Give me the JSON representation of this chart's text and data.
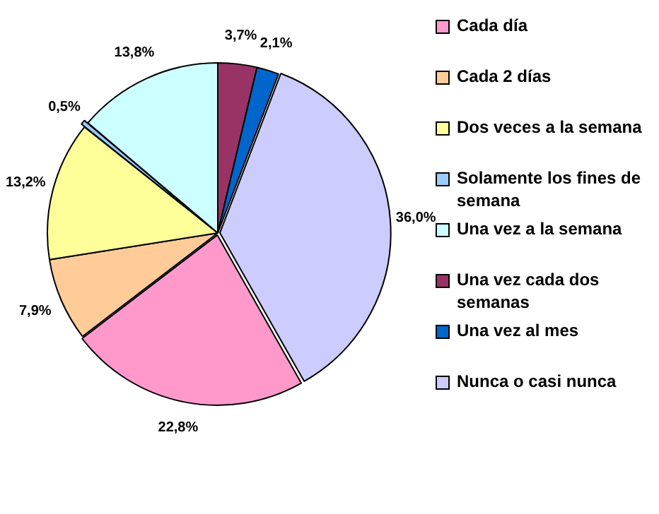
{
  "chart_data": {
    "type": "pie",
    "categories": [
      "Cada día",
      "Cada 2 días",
      "Dos veces a la semana",
      "Solamente los fines de semana",
      "Una vez a la semana",
      "Una vez cada dos semanas",
      "Una vez al mes",
      "Nunca o casi nunca"
    ],
    "values": [
      22.8,
      7.9,
      13.2,
      0.5,
      13.8,
      3.7,
      2.1,
      36.0
    ],
    "colors": [
      "#ff99cc",
      "#ffcc99",
      "#ffff99",
      "#99ccff",
      "#ccffff",
      "#993366",
      "#0066cc",
      "#ccccff"
    ],
    "value_labels": [
      "22,8%",
      "7,9%",
      "13,2%",
      "0,5%",
      "13,8%",
      "3,7%",
      "2,1%",
      "36,0%"
    ],
    "legend": "right"
  }
}
